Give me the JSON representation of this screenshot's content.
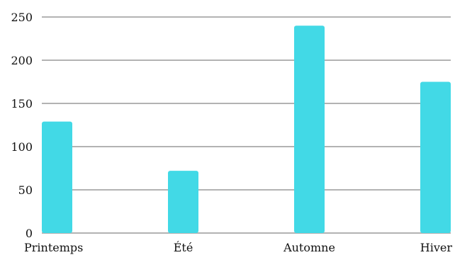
{
  "chart_data": {
    "type": "bar",
    "title": "",
    "xlabel": "",
    "ylabel": "",
    "categories": [
      "Printemps",
      "Été",
      "Automne",
      "Hiver"
    ],
    "values": [
      129,
      72,
      240,
      175
    ],
    "ylim": [
      0,
      250
    ],
    "yticks": [
      0,
      50,
      100,
      150,
      200,
      250
    ],
    "grid": true,
    "legend": "none",
    "colors": {
      "bar": "#42d9e6",
      "grid": "#b3b3b3",
      "text": "#111111"
    }
  }
}
